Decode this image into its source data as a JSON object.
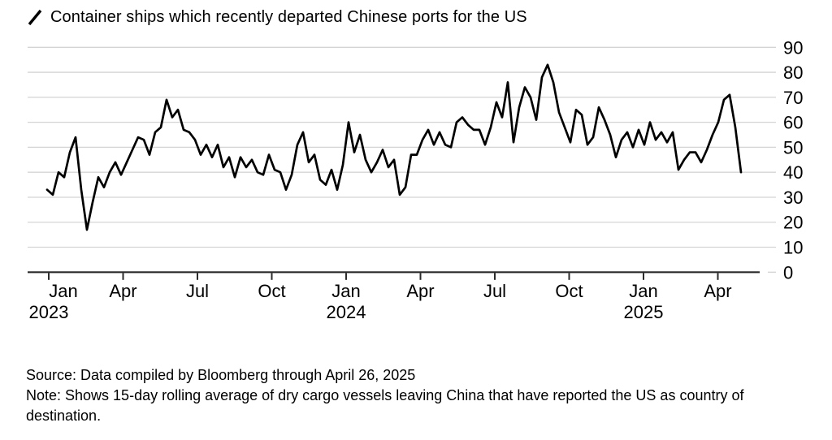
{
  "title": {
    "text": "Container ships which recently departed Chinese ports for the US",
    "legend_icon": "diagonal-line-icon"
  },
  "colors": {
    "background": "#ffffff",
    "series_line": "#000000",
    "gridline": "#d4d4d4",
    "axis_line": "#2b2b2b",
    "text": "#000000"
  },
  "chart_data": {
    "type": "line",
    "title": "Container ships which recently departed Chinese ports for the US",
    "x_start": "2023-01-01",
    "x_end": "2025-04-26",
    "sampling": "approx. weekly values estimated from plot",
    "ylabel": "",
    "xlabel": "",
    "ylim": [
      0,
      90
    ],
    "yticks": [
      0,
      10,
      20,
      30,
      40,
      50,
      60,
      70,
      80,
      90
    ],
    "grid": "horizontal",
    "legend_position": "none",
    "xticks": [
      {
        "m": 0,
        "label": "Jan",
        "year": "2023"
      },
      {
        "m": 3,
        "label": "Apr"
      },
      {
        "m": 6,
        "label": "Jul"
      },
      {
        "m": 9,
        "label": "Oct"
      },
      {
        "m": 12,
        "label": "Jan",
        "year": "2024"
      },
      {
        "m": 15,
        "label": "Apr"
      },
      {
        "m": 18,
        "label": "Jul"
      },
      {
        "m": 21,
        "label": "Oct"
      },
      {
        "m": 24,
        "label": "Jan",
        "year": "2025"
      },
      {
        "m": 27,
        "label": "Apr"
      }
    ],
    "values": [
      33,
      31,
      40,
      38,
      48,
      54,
      33,
      17,
      28,
      38,
      34,
      40,
      44,
      39,
      44,
      49,
      54,
      53,
      47,
      56,
      58,
      69,
      62,
      65,
      57,
      56,
      53,
      47,
      51,
      46,
      51,
      42,
      46,
      38,
      46,
      42,
      45,
      40,
      39,
      47,
      41,
      40,
      33,
      39,
      51,
      56,
      44,
      47,
      37,
      35,
      41,
      33,
      43,
      60,
      48,
      55,
      45,
      40,
      44,
      49,
      42,
      45,
      31,
      34,
      47,
      47,
      53,
      57,
      51,
      56,
      51,
      50,
      60,
      62,
      59,
      57,
      57,
      51,
      58,
      68,
      62,
      76,
      52,
      66,
      74,
      70,
      61,
      78,
      83,
      76,
      64,
      58,
      52,
      65,
      63,
      51,
      54,
      66,
      61,
      55,
      46,
      53,
      56,
      50,
      57,
      51,
      60,
      53,
      56,
      52,
      56,
      41,
      45,
      48,
      48,
      44,
      49,
      55,
      60,
      69,
      71,
      58,
      40
    ]
  },
  "footer": {
    "source": "Source: Data compiled by Bloomberg through April 26, 2025",
    "note": "Note: Shows 15-day rolling average of dry cargo vessels leaving China that have reported the US as country of destination."
  }
}
